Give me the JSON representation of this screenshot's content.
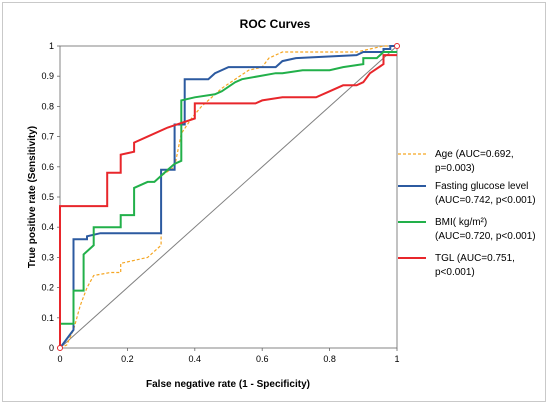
{
  "chart_data": {
    "type": "line",
    "title": "ROC Curves",
    "xlabel": "False negative rate (1 - Specificity)",
    "ylabel": "True positive rate (Sensitivity)",
    "xlim": [
      0,
      1
    ],
    "ylim": [
      0,
      1
    ],
    "x_ticks": [
      "0",
      "0.2",
      "0.4",
      "0.6",
      "0.8",
      "1"
    ],
    "y_ticks": [
      "0",
      "0.1",
      "0.2",
      "0.3",
      "0.4",
      "0.5",
      "0.6",
      "0.7",
      "0.8",
      "0.9",
      "1"
    ],
    "grid": false,
    "legend_position": "right",
    "reference_line": {
      "x": [
        0,
        1
      ],
      "y": [
        0,
        1
      ],
      "color": "#808080"
    },
    "series": [
      {
        "name": "Age",
        "legend_lines": [
          "Age (AUC=0.692,",
          "p=0.003)"
        ],
        "color": "#f5a623",
        "dash": true,
        "x": [
          0,
          0.02,
          0.04,
          0.06,
          0.08,
          0.1,
          0.15,
          0.18,
          0.18,
          0.22,
          0.26,
          0.3,
          0.3,
          0.34,
          0.36,
          0.39,
          0.42,
          0.44,
          0.48,
          0.52,
          0.56,
          0.6,
          0.62,
          0.66,
          0.68,
          0.72,
          0.76,
          0.8,
          0.84,
          0.88,
          0.92,
          0.96,
          0.98,
          1.0
        ],
        "y": [
          0,
          0.01,
          0.06,
          0.14,
          0.2,
          0.24,
          0.25,
          0.25,
          0.28,
          0.29,
          0.3,
          0.34,
          0.57,
          0.6,
          0.71,
          0.76,
          0.8,
          0.82,
          0.86,
          0.89,
          0.92,
          0.93,
          0.96,
          0.98,
          0.98,
          0.98,
          0.98,
          0.98,
          0.98,
          0.98,
          0.99,
          1.0,
          1.0,
          1.0
        ]
      },
      {
        "name": "Fasting glucose level",
        "legend_lines": [
          "Fasting glucose level",
          "(AUC=0.742, p<0.001)"
        ],
        "color": "#2c5aa0",
        "dash": false,
        "x": [
          0,
          0.04,
          0.04,
          0.08,
          0.08,
          0.12,
          0.18,
          0.3,
          0.3,
          0.34,
          0.34,
          0.37,
          0.37,
          0.44,
          0.46,
          0.5,
          0.64,
          0.66,
          0.7,
          0.88,
          0.9,
          0.96,
          0.96,
          0.98,
          0.98,
          1.0
        ],
        "y": [
          0,
          0.06,
          0.36,
          0.36,
          0.37,
          0.38,
          0.38,
          0.38,
          0.59,
          0.59,
          0.74,
          0.74,
          0.89,
          0.89,
          0.91,
          0.93,
          0.93,
          0.95,
          0.96,
          0.97,
          0.98,
          0.98,
          0.99,
          0.99,
          1.0,
          1.0
        ]
      },
      {
        "name": "BMI(kg/m²)",
        "legend_lines": [
          "BMI( kg/m²)",
          "(AUC=0.720, p<0.001)"
        ],
        "color": "#22b04a",
        "dash": false,
        "x": [
          0,
          0.04,
          0.04,
          0.07,
          0.07,
          0.1,
          0.1,
          0.18,
          0.18,
          0.22,
          0.22,
          0.26,
          0.28,
          0.32,
          0.34,
          0.36,
          0.36,
          0.4,
          0.46,
          0.48,
          0.52,
          0.54,
          0.64,
          0.66,
          0.72,
          0.8,
          0.84,
          0.9,
          0.9,
          0.94,
          0.96,
          1.0
        ],
        "y": [
          0.08,
          0.08,
          0.19,
          0.19,
          0.31,
          0.34,
          0.4,
          0.4,
          0.44,
          0.44,
          0.53,
          0.55,
          0.55,
          0.59,
          0.61,
          0.62,
          0.82,
          0.83,
          0.84,
          0.85,
          0.88,
          0.89,
          0.91,
          0.91,
          0.92,
          0.92,
          0.93,
          0.94,
          0.96,
          0.96,
          0.98,
          0.98
        ]
      },
      {
        "name": "TGL",
        "legend_lines": [
          "TGL (AUC=0.751,",
          "p<0.001)"
        ],
        "color": "#e8262b",
        "dash": false,
        "x": [
          0,
          0,
          0.14,
          0.14,
          0.18,
          0.18,
          0.22,
          0.22,
          0.26,
          0.32,
          0.4,
          0.4,
          0.58,
          0.6,
          0.66,
          0.76,
          0.8,
          0.84,
          0.88,
          0.9,
          0.92,
          0.96,
          0.96,
          1.0
        ],
        "y": [
          0,
          0.47,
          0.47,
          0.58,
          0.58,
          0.64,
          0.65,
          0.68,
          0.7,
          0.73,
          0.76,
          0.81,
          0.81,
          0.82,
          0.83,
          0.83,
          0.85,
          0.87,
          0.87,
          0.88,
          0.91,
          0.94,
          0.97,
          0.97
        ]
      }
    ]
  }
}
